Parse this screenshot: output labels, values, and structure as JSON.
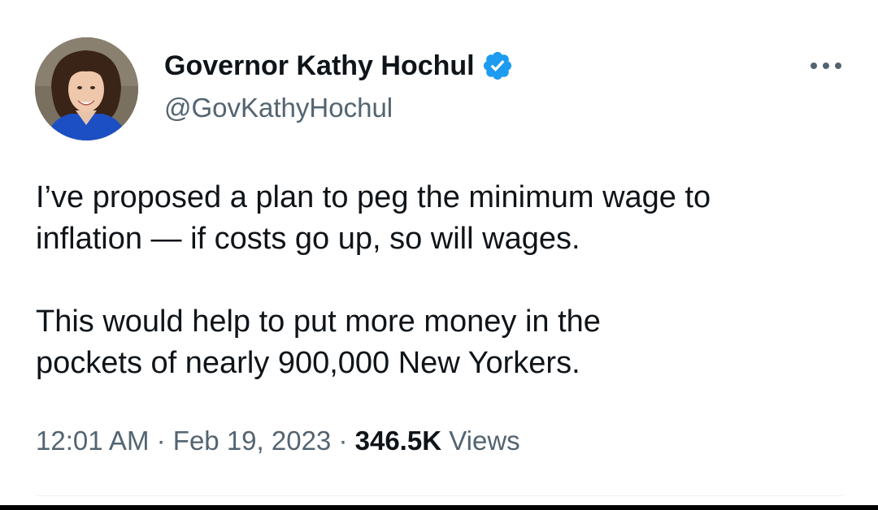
{
  "author": {
    "name": "Governor Kathy Hochul",
    "handle": "@GovKathyHochul",
    "verified": true,
    "avatar": "profile-photo"
  },
  "tweet": {
    "paragraph1_line1": "I’ve proposed a plan to peg the minimum wage to",
    "paragraph1_line2": "inflation — if costs go up, so will wages.",
    "paragraph2_line1": "This would help to put more money in the",
    "paragraph2_line2": "pockets of nearly 900,000 New Yorkers."
  },
  "meta": {
    "time": "12:01 AM",
    "separator": "·",
    "date": "Feb 19, 2023",
    "views_count": "346.5K",
    "views_label": "Views"
  },
  "icons": {
    "verified": "verified-badge-icon",
    "more": "more-options-icon"
  },
  "colors": {
    "text_primary": "#0f1419",
    "text_secondary": "#536471",
    "verified_blue": "#1d9bf0",
    "divider": "#eff3f4"
  }
}
